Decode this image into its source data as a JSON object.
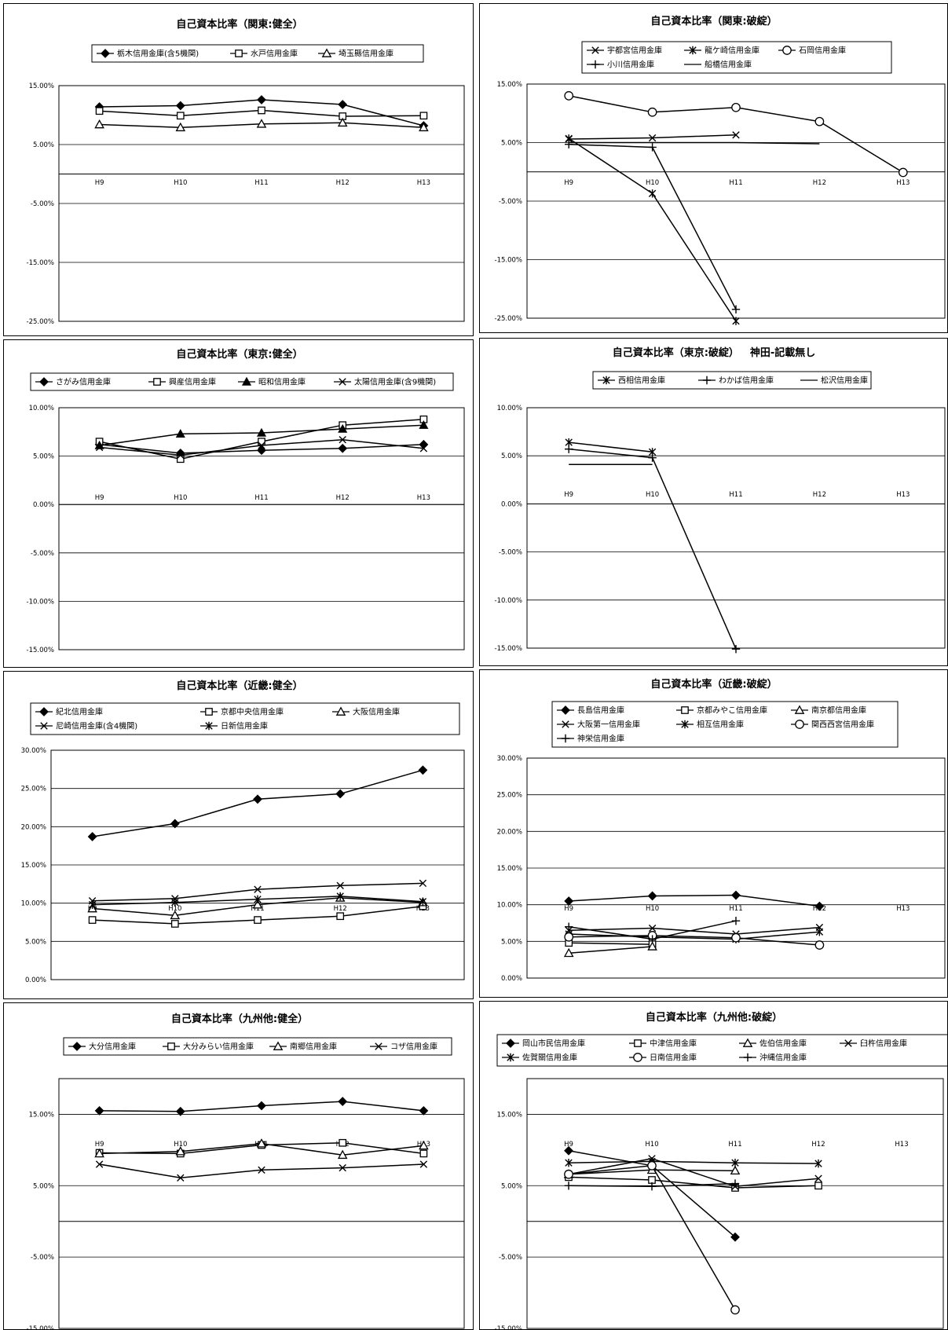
{
  "charts": [
    {
      "title": "自己資本比率（関東:健全）",
      "chart_data": {
        "type": "line",
        "categories": [
          "H9",
          "H10",
          "H11",
          "H12",
          "H13"
        ],
        "ylim": [
          -25,
          15
        ],
        "yticks": [
          "15.00%",
          "5.00%",
          "-5.00%",
          "-15.00%",
          "-25.00%"
        ],
        "grid": true,
        "legend_position": "top",
        "series": [
          {
            "name": "栃木信用金庫(含5機関)",
            "marker": "diamond-filled",
            "values": [
              11.4,
              11.6,
              12.6,
              11.8,
              8.2
            ]
          },
          {
            "name": "水戸信用金庫",
            "marker": "square-open",
            "values": [
              10.7,
              9.9,
              10.8,
              9.8,
              9.9
            ]
          },
          {
            "name": "埼玉縣信用金庫",
            "marker": "triangle-open",
            "values": [
              8.4,
              7.9,
              8.5,
              8.7,
              7.9
            ]
          }
        ]
      }
    },
    {
      "title": "自己資本比率（関東:破綻）",
      "chart_data": {
        "type": "line",
        "categories": [
          "H9",
          "H10",
          "H11",
          "H12",
          "H13"
        ],
        "ylim": [
          -25,
          15
        ],
        "yticks": [
          "15.00%",
          "5.00%",
          "-5.00%",
          "-15.00%",
          "-25.00%"
        ],
        "grid": true,
        "legend_position": "top",
        "series": [
          {
            "name": "宇都宮信用金庫",
            "marker": "x",
            "values": [
              5.6,
              5.8,
              6.3,
              null,
              null
            ]
          },
          {
            "name": "龍ケ崎信用金庫",
            "marker": "asterisk",
            "values": [
              5.7,
              -3.7,
              -25.5,
              null,
              null
            ]
          },
          {
            "name": "石岡信用金庫",
            "marker": "circle-open",
            "values": [
              13.0,
              10.2,
              11.0,
              8.6,
              -0.1
            ]
          },
          {
            "name": "小川信用金庫",
            "marker": "plus",
            "values": [
              4.7,
              4.2,
              -23.5,
              null,
              null
            ]
          },
          {
            "name": "船橋信用金庫",
            "marker": "none",
            "values": [
              5.0,
              5.0,
              5.0,
              4.8,
              null
            ]
          }
        ]
      }
    },
    {
      "title": "自己資本比率（東京:健全）",
      "chart_data": {
        "type": "line",
        "categories": [
          "H9",
          "H10",
          "H11",
          "H12",
          "H13"
        ],
        "ylim": [
          -15,
          10
        ],
        "yticks": [
          "10.00%",
          "5.00%",
          "0.00%",
          "-5.00%",
          "-10.00%",
          "-15.00%"
        ],
        "grid": true,
        "legend_position": "top",
        "series": [
          {
            "name": "さがみ信用金庫",
            "marker": "diamond-filled",
            "values": [
              6.2,
              5.3,
              5.6,
              5.8,
              6.2
            ]
          },
          {
            "name": "興産信用金庫",
            "marker": "square-open",
            "values": [
              6.5,
              4.7,
              6.5,
              8.2,
              8.8
            ]
          },
          {
            "name": "昭和信用金庫",
            "marker": "triangle-filled",
            "values": [
              6.1,
              7.3,
              7.4,
              7.8,
              8.2
            ]
          },
          {
            "name": "太陽信用金庫(含9機関)",
            "marker": "x",
            "values": [
              5.9,
              5.1,
              6.1,
              6.7,
              5.8
            ]
          }
        ]
      }
    },
    {
      "title": "自己資本比率（東京:破綻）",
      "extra_title": "神田-記載無し",
      "chart_data": {
        "type": "line",
        "categories": [
          "H9",
          "H10",
          "H11",
          "H12",
          "H13"
        ],
        "ylim": [
          -15,
          10
        ],
        "yticks": [
          "10.00%",
          "5.00%",
          "0.00%",
          "-5.00%",
          "-10.00%",
          "-15.00%"
        ],
        "grid": true,
        "legend_position": "top",
        "series": [
          {
            "name": "西相信用金庫",
            "marker": "asterisk",
            "values": [
              6.4,
              5.4,
              null,
              null,
              null
            ]
          },
          {
            "name": "わかば信用金庫",
            "marker": "plus",
            "values": [
              5.7,
              4.8,
              -15.1,
              null,
              null
            ]
          },
          {
            "name": "松沢信用金庫",
            "marker": "none",
            "values": [
              4.1,
              4.1,
              null,
              null,
              null
            ]
          }
        ]
      }
    },
    {
      "title": "自己資本比率（近畿:健全）",
      "chart_data": {
        "type": "line",
        "categories": [
          "H9",
          "H10",
          "H11",
          "H12",
          "H13"
        ],
        "ylim": [
          0,
          30
        ],
        "yticks": [
          "30.00%",
          "25.00%",
          "20.00%",
          "15.00%",
          "10.00%",
          "5.00%",
          "0.00%"
        ],
        "grid": true,
        "legend_position": "top",
        "series": [
          {
            "name": "紀北信用金庫",
            "marker": "diamond-filled",
            "values": [
              18.7,
              20.4,
              23.6,
              24.3,
              27.4
            ]
          },
          {
            "name": "京都中央信用金庫",
            "marker": "square-open",
            "values": [
              7.8,
              7.3,
              7.8,
              8.3,
              9.6
            ]
          },
          {
            "name": "大阪信用金庫",
            "marker": "triangle-open",
            "values": [
              9.3,
              8.4,
              9.8,
              10.7,
              10.1
            ]
          },
          {
            "name": "尼崎信用金庫(含4機関)",
            "marker": "x",
            "values": [
              10.3,
              10.6,
              11.8,
              12.3,
              12.6
            ]
          },
          {
            "name": "日新信用金庫",
            "marker": "asterisk",
            "values": [
              9.8,
              10.1,
              10.5,
              10.9,
              10.2
            ]
          }
        ]
      }
    },
    {
      "title": "自己資本比率（近畿:破綻）",
      "chart_data": {
        "type": "line",
        "categories": [
          "H9",
          "H10",
          "H11",
          "H12",
          "H13"
        ],
        "ylim": [
          0,
          30
        ],
        "yticks": [
          "30.00%",
          "25.00%",
          "20.00%",
          "15.00%",
          "10.00%",
          "5.00%",
          "0.00%"
        ],
        "grid": true,
        "legend_position": "top",
        "series": [
          {
            "name": "長島信用金庫",
            "marker": "diamond-filled",
            "values": [
              10.5,
              11.2,
              11.3,
              9.8,
              null
            ]
          },
          {
            "name": "京都みやこ信用金庫",
            "marker": "square-open",
            "values": [
              4.8,
              4.6,
              null,
              null,
              null
            ]
          },
          {
            "name": "南京都信用金庫",
            "marker": "triangle-open",
            "values": [
              3.4,
              4.3,
              null,
              null,
              null
            ]
          },
          {
            "name": "大阪第一信用金庫",
            "marker": "x",
            "values": [
              6.5,
              6.8,
              6.0,
              6.9,
              null
            ]
          },
          {
            "name": "相互信用金庫",
            "marker": "asterisk",
            "values": [
              6.0,
              5.6,
              5.3,
              6.3,
              null
            ]
          },
          {
            "name": "関西西宮信用金庫",
            "marker": "circle-open",
            "values": [
              5.6,
              5.8,
              5.5,
              4.5,
              null
            ]
          },
          {
            "name": "神栄信用金庫",
            "marker": "plus",
            "values": [
              7.0,
              5.3,
              7.8,
              null,
              null
            ]
          }
        ]
      }
    },
    {
      "title": "自己資本比率（九州他:健全）",
      "chart_data": {
        "type": "line",
        "categories": [
          "H9",
          "H10",
          "H11",
          "H12",
          "H13"
        ],
        "ylim": [
          -15,
          20
        ],
        "yticks": [
          "15.00%",
          "5.00%",
          "-5.00%",
          "-15.00%"
        ],
        "grid": true,
        "legend_position": "top",
        "series": [
          {
            "name": "大分信用金庫",
            "marker": "diamond-filled",
            "values": [
              15.5,
              15.4,
              16.2,
              16.8,
              15.5
            ]
          },
          {
            "name": "大分みらい信用金庫",
            "marker": "square-open",
            "values": [
              9.6,
              9.5,
              10.7,
              11.0,
              9.5
            ]
          },
          {
            "name": "南郷信用金庫",
            "marker": "triangle-open",
            "values": [
              9.5,
              9.8,
              10.9,
              9.3,
              10.6
            ]
          },
          {
            "name": "コザ信用金庫",
            "marker": "x",
            "values": [
              8.0,
              6.1,
              7.2,
              7.5,
              8.0
            ]
          }
        ]
      }
    },
    {
      "title": "自己資本比率（九州他:破綻）",
      "chart_data": {
        "type": "line",
        "categories": [
          "H9",
          "H10",
          "H11",
          "H12",
          "H13"
        ],
        "ylim": [
          -15,
          20
        ],
        "yticks": [
          "15.00%",
          "5.00%",
          "-5.00%",
          "-15.00%"
        ],
        "grid": true,
        "legend_position": "top",
        "series": [
          {
            "name": "岡山市民信用金庫",
            "marker": "diamond-filled",
            "values": [
              9.9,
              7.8,
              -2.2,
              null,
              null
            ]
          },
          {
            "name": "中津信用金庫",
            "marker": "square-open",
            "values": [
              6.2,
              5.8,
              4.7,
              5.0,
              null
            ]
          },
          {
            "name": "佐伯信用金庫",
            "marker": "triangle-open",
            "values": [
              6.6,
              7.2,
              7.1,
              null,
              null
            ]
          },
          {
            "name": "臼杵信用金庫",
            "marker": "x",
            "values": [
              6.6,
              8.8,
              4.9,
              6.0,
              null
            ]
          },
          {
            "name": "佐賀關信用金庫",
            "marker": "asterisk",
            "values": [
              8.2,
              8.4,
              8.2,
              8.1,
              null
            ]
          },
          {
            "name": "日南信用金庫",
            "marker": "circle-open",
            "values": [
              6.6,
              7.8,
              -12.4,
              null,
              null
            ]
          },
          {
            "name": "沖縄信用金庫",
            "marker": "plus",
            "values": [
              5.0,
              4.9,
              5.3,
              null,
              null
            ]
          }
        ]
      }
    }
  ]
}
